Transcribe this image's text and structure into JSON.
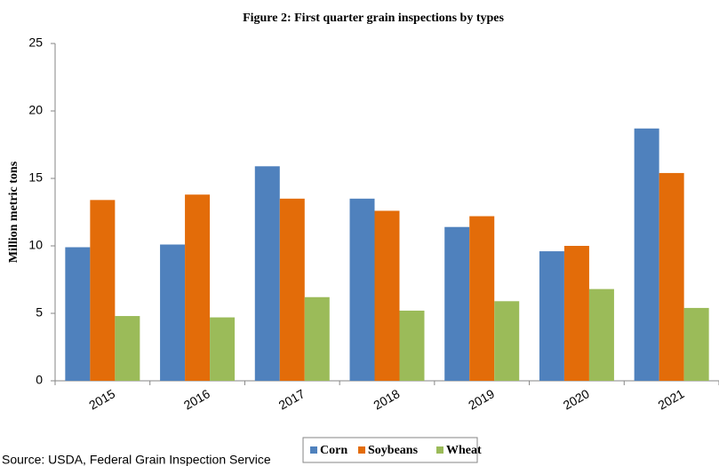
{
  "chart_data": {
    "type": "bar",
    "title": "Figure 2:  First quarter grain inspections by types",
    "y_label": "Million metric tons",
    "source": "Source:  USDA, Federal Grain Inspection Service",
    "categories": [
      "2015",
      "2016",
      "2017",
      "2018",
      "2019",
      "2020",
      "2021"
    ],
    "series": [
      {
        "name": "Corn",
        "color": "#4f81bd",
        "values": [
          9.9,
          10.1,
          15.9,
          13.5,
          11.4,
          9.6,
          18.7
        ]
      },
      {
        "name": "Soybeans",
        "color": "#e36c09",
        "values": [
          13.4,
          13.8,
          13.5,
          12.6,
          12.2,
          10.0,
          15.4
        ]
      },
      {
        "name": "Wheat",
        "color": "#9bbb59",
        "values": [
          4.8,
          4.7,
          6.2,
          5.2,
          5.9,
          6.8,
          5.4
        ]
      }
    ],
    "ylim": [
      0,
      25
    ],
    "yticks": [
      0,
      5,
      10,
      15,
      20,
      25
    ],
    "grid": false
  }
}
